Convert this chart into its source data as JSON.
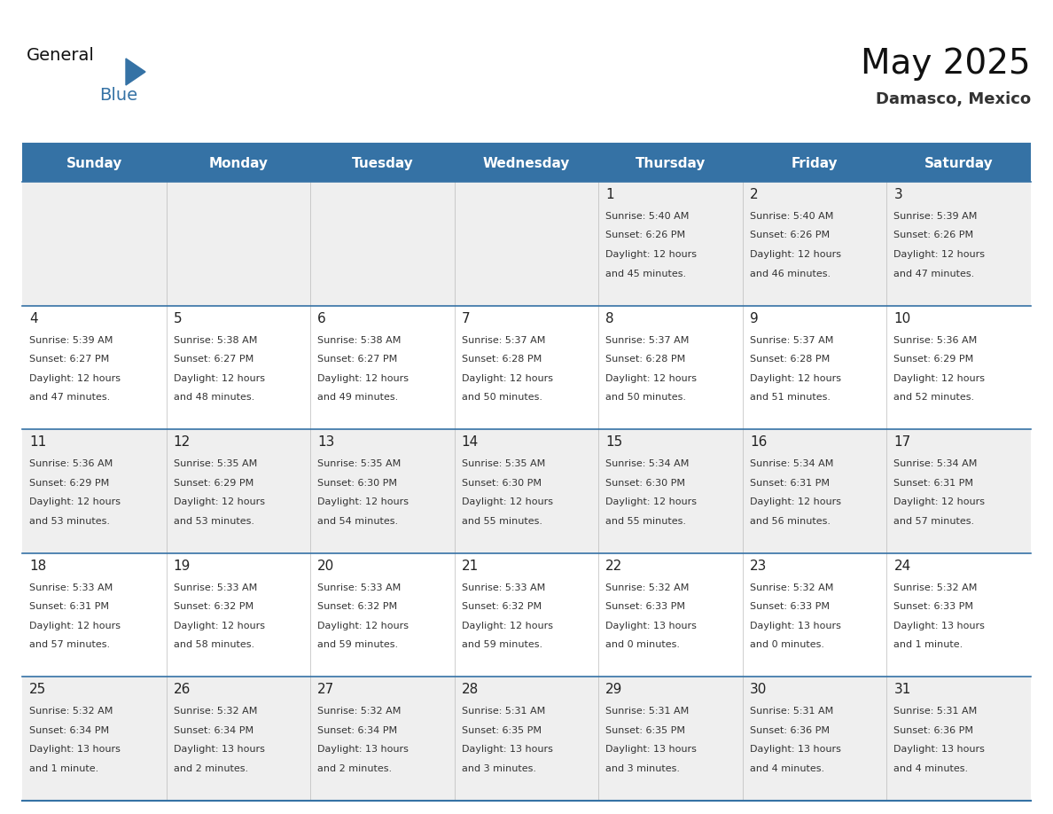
{
  "title": "May 2025",
  "subtitle": "Damasco, Mexico",
  "days_of_week": [
    "Sunday",
    "Monday",
    "Tuesday",
    "Wednesday",
    "Thursday",
    "Friday",
    "Saturday"
  ],
  "header_bg": "#3572A5",
  "header_text_color": "#FFFFFF",
  "cell_bg_odd": "#EFEFEF",
  "cell_bg_even": "#FFFFFF",
  "separator_color": "#3572A5",
  "grid_color": "#AAAAAA",
  "day_num_color": "#222222",
  "info_text_color": "#333333",
  "calendar_data": [
    [
      null,
      null,
      null,
      null,
      {
        "day": 1,
        "sunrise": "5:40 AM",
        "sunset": "6:26 PM",
        "daylight": "12 hours",
        "daylight2": "and 45 minutes."
      },
      {
        "day": 2,
        "sunrise": "5:40 AM",
        "sunset": "6:26 PM",
        "daylight": "12 hours",
        "daylight2": "and 46 minutes."
      },
      {
        "day": 3,
        "sunrise": "5:39 AM",
        "sunset": "6:26 PM",
        "daylight": "12 hours",
        "daylight2": "and 47 minutes."
      }
    ],
    [
      {
        "day": 4,
        "sunrise": "5:39 AM",
        "sunset": "6:27 PM",
        "daylight": "12 hours",
        "daylight2": "and 47 minutes."
      },
      {
        "day": 5,
        "sunrise": "5:38 AM",
        "sunset": "6:27 PM",
        "daylight": "12 hours",
        "daylight2": "and 48 minutes."
      },
      {
        "day": 6,
        "sunrise": "5:38 AM",
        "sunset": "6:27 PM",
        "daylight": "12 hours",
        "daylight2": "and 49 minutes."
      },
      {
        "day": 7,
        "sunrise": "5:37 AM",
        "sunset": "6:28 PM",
        "daylight": "12 hours",
        "daylight2": "and 50 minutes."
      },
      {
        "day": 8,
        "sunrise": "5:37 AM",
        "sunset": "6:28 PM",
        "daylight": "12 hours",
        "daylight2": "and 50 minutes."
      },
      {
        "day": 9,
        "sunrise": "5:37 AM",
        "sunset": "6:28 PM",
        "daylight": "12 hours",
        "daylight2": "and 51 minutes."
      },
      {
        "day": 10,
        "sunrise": "5:36 AM",
        "sunset": "6:29 PM",
        "daylight": "12 hours",
        "daylight2": "and 52 minutes."
      }
    ],
    [
      {
        "day": 11,
        "sunrise": "5:36 AM",
        "sunset": "6:29 PM",
        "daylight": "12 hours",
        "daylight2": "and 53 minutes."
      },
      {
        "day": 12,
        "sunrise": "5:35 AM",
        "sunset": "6:29 PM",
        "daylight": "12 hours",
        "daylight2": "and 53 minutes."
      },
      {
        "day": 13,
        "sunrise": "5:35 AM",
        "sunset": "6:30 PM",
        "daylight": "12 hours",
        "daylight2": "and 54 minutes."
      },
      {
        "day": 14,
        "sunrise": "5:35 AM",
        "sunset": "6:30 PM",
        "daylight": "12 hours",
        "daylight2": "and 55 minutes."
      },
      {
        "day": 15,
        "sunrise": "5:34 AM",
        "sunset": "6:30 PM",
        "daylight": "12 hours",
        "daylight2": "and 55 minutes."
      },
      {
        "day": 16,
        "sunrise": "5:34 AM",
        "sunset": "6:31 PM",
        "daylight": "12 hours",
        "daylight2": "and 56 minutes."
      },
      {
        "day": 17,
        "sunrise": "5:34 AM",
        "sunset": "6:31 PM",
        "daylight": "12 hours",
        "daylight2": "and 57 minutes."
      }
    ],
    [
      {
        "day": 18,
        "sunrise": "5:33 AM",
        "sunset": "6:31 PM",
        "daylight": "12 hours",
        "daylight2": "and 57 minutes."
      },
      {
        "day": 19,
        "sunrise": "5:33 AM",
        "sunset": "6:32 PM",
        "daylight": "12 hours",
        "daylight2": "and 58 minutes."
      },
      {
        "day": 20,
        "sunrise": "5:33 AM",
        "sunset": "6:32 PM",
        "daylight": "12 hours",
        "daylight2": "and 59 minutes."
      },
      {
        "day": 21,
        "sunrise": "5:33 AM",
        "sunset": "6:32 PM",
        "daylight": "12 hours",
        "daylight2": "and 59 minutes."
      },
      {
        "day": 22,
        "sunrise": "5:32 AM",
        "sunset": "6:33 PM",
        "daylight": "13 hours",
        "daylight2": "and 0 minutes."
      },
      {
        "day": 23,
        "sunrise": "5:32 AM",
        "sunset": "6:33 PM",
        "daylight": "13 hours",
        "daylight2": "and 0 minutes."
      },
      {
        "day": 24,
        "sunrise": "5:32 AM",
        "sunset": "6:33 PM",
        "daylight": "13 hours",
        "daylight2": "and 1 minute."
      }
    ],
    [
      {
        "day": 25,
        "sunrise": "5:32 AM",
        "sunset": "6:34 PM",
        "daylight": "13 hours",
        "daylight2": "and 1 minute."
      },
      {
        "day": 26,
        "sunrise": "5:32 AM",
        "sunset": "6:34 PM",
        "daylight": "13 hours",
        "daylight2": "and 2 minutes."
      },
      {
        "day": 27,
        "sunrise": "5:32 AM",
        "sunset": "6:34 PM",
        "daylight": "13 hours",
        "daylight2": "and 2 minutes."
      },
      {
        "day": 28,
        "sunrise": "5:31 AM",
        "sunset": "6:35 PM",
        "daylight": "13 hours",
        "daylight2": "and 3 minutes."
      },
      {
        "day": 29,
        "sunrise": "5:31 AM",
        "sunset": "6:35 PM",
        "daylight": "13 hours",
        "daylight2": "and 3 minutes."
      },
      {
        "day": 30,
        "sunrise": "5:31 AM",
        "sunset": "6:36 PM",
        "daylight": "13 hours",
        "daylight2": "and 4 minutes."
      },
      {
        "day": 31,
        "sunrise": "5:31 AM",
        "sunset": "6:36 PM",
        "daylight": "13 hours",
        "daylight2": "and 4 minutes."
      }
    ]
  ]
}
